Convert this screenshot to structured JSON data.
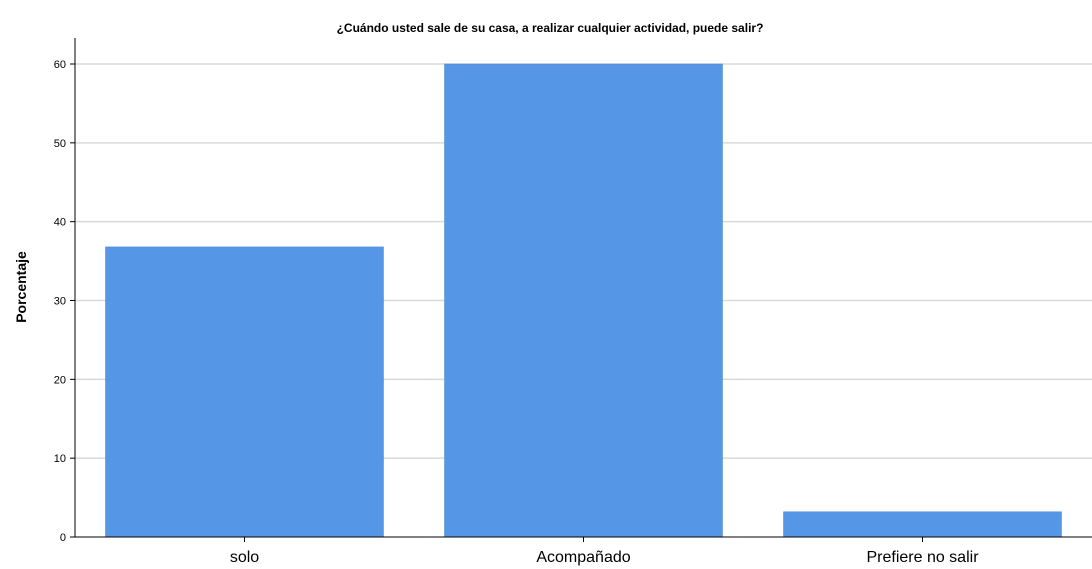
{
  "chart_data": {
    "type": "bar",
    "title": "¿Cuándo usted sale de su casa, a realizar cualquier actividad, puede salir?",
    "xlabel": "",
    "ylabel": "Porcentaje",
    "categories": [
      "solo",
      "Acompañado",
      "Prefiere no salir"
    ],
    "values": [
      36.8,
      60.0,
      3.2
    ],
    "ylim": [
      0,
      60
    ],
    "yticks": [
      0,
      10,
      20,
      30,
      40,
      50,
      60
    ],
    "grid": true,
    "bar_color": "#5596e6"
  }
}
